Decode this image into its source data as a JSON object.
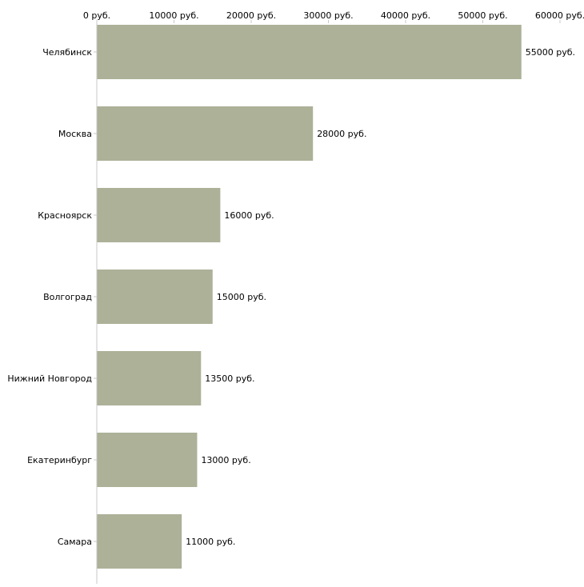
{
  "chart_data": {
    "type": "bar",
    "orientation": "horizontal",
    "title": "",
    "xlabel": "",
    "ylabel": "",
    "xlim": [
      0,
      60000
    ],
    "ticks": [
      0,
      10000,
      20000,
      30000,
      40000,
      50000,
      60000
    ],
    "tick_labels": [
      "0 руб.",
      "10000 руб.",
      "20000 руб.",
      "30000 руб.",
      "40000 руб.",
      "50000 руб.",
      "60000 руб."
    ],
    "categories": [
      "Челябинск",
      "Москва",
      "Красноярск",
      "Волгоград",
      "Нижний Новгород",
      "Екатеринбург",
      "Самара"
    ],
    "values": [
      55000,
      28000,
      16000,
      15000,
      13500,
      13000,
      11000
    ],
    "value_labels": [
      "55000 руб.",
      "28000 руб.",
      "16000 руб.",
      "15000 руб.",
      "13500 руб.",
      "13000 руб.",
      "11000 руб."
    ],
    "bar_color": "#acb198",
    "axis_color": "#c8c8c8",
    "grid": false,
    "legend": "none"
  }
}
